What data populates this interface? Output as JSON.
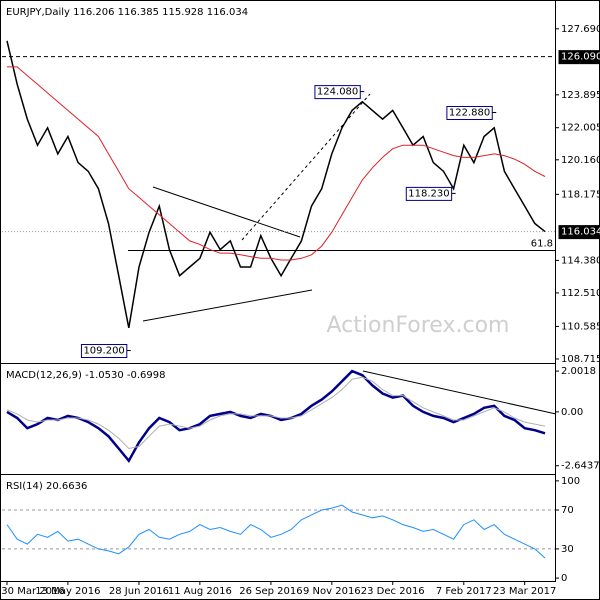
{
  "chart_data": [
    {
      "type": "line",
      "title": "EURJPY,Daily 116.206 116.385 115.928 116.034",
      "watermark": "ActionForex.com",
      "series": [
        {
          "color": "#000000",
          "values": [
            127.0,
            124.5,
            122.5,
            121.0,
            122.0,
            120.5,
            121.5,
            120.0,
            119.5,
            118.5,
            116.5,
            113.5,
            110.5,
            114.0,
            116.0,
            117.5,
            115.0,
            113.5,
            114.0,
            114.5,
            116.0,
            115.0,
            115.5,
            114.0,
            114.0,
            115.8,
            114.5,
            113.5,
            114.5,
            115.5,
            117.5,
            118.5,
            120.5,
            122.0,
            123.0,
            123.5,
            123.0,
            122.5,
            123.0,
            122.0,
            121.0,
            121.5,
            120.0,
            119.5,
            118.5,
            121.0,
            120.0,
            121.5,
            122.0,
            119.5,
            118.5,
            117.5,
            116.5,
            116.034
          ]
        },
        {
          "color": "#e0202a",
          "values": [
            125.5,
            125.5,
            125.0,
            124.5,
            124.0,
            123.5,
            123.0,
            122.5,
            122.0,
            121.5,
            120.5,
            119.5,
            118.5,
            118.0,
            117.5,
            117.0,
            116.5,
            116.0,
            115.5,
            115.3,
            115.0,
            114.8,
            114.8,
            114.7,
            114.6,
            114.5,
            114.5,
            114.4,
            114.4,
            114.5,
            114.7,
            115.2,
            116.0,
            117.0,
            118.0,
            119.0,
            119.7,
            120.3,
            120.8,
            121.0,
            121.0,
            121.0,
            120.8,
            120.6,
            120.4,
            120.3,
            120.3,
            120.4,
            120.5,
            120.4,
            120.2,
            119.9,
            119.5,
            119.2
          ]
        }
      ],
      "ylim": [
        108.54,
        129.23
      ],
      "yticks": [
        {
          "value": 127.69,
          "label": "127.690"
        },
        {
          "value": 123.895,
          "label": "123.895"
        },
        {
          "value": 122.005,
          "label": "122.005"
        },
        {
          "value": 120.16,
          "label": "120.160"
        },
        {
          "value": 118.175,
          "label": "118.175"
        },
        {
          "value": 114.38,
          "label": "114.380"
        },
        {
          "value": 112.51,
          "label": "112.510"
        },
        {
          "value": 110.585,
          "label": "110.585"
        },
        {
          "value": 108.715,
          "label": "108.715"
        }
      ],
      "hlines": [
        {
          "value": 126.09,
          "label": "126.090"
        },
        {
          "value": 116.034,
          "label": "116.034"
        }
      ],
      "fib": {
        "value": 114.95,
        "label": "61.8"
      },
      "annotations": [
        {
          "value": 124.08,
          "label": "124.080",
          "x": 35
        },
        {
          "value": 122.88,
          "label": "122.880",
          "x": 48
        },
        {
          "value": 118.23,
          "label": "118.230",
          "x": 44
        },
        {
          "value": 109.2,
          "label": "109.200",
          "x": 12
        }
      ]
    },
    {
      "type": "line",
      "title": "MACD(12,26,9) -1.0530 -0.6998",
      "series": [
        {
          "color": "#00008b",
          "values": [
            0.0,
            -0.3,
            -0.8,
            -0.6,
            -0.3,
            -0.4,
            -0.2,
            -0.3,
            -0.5,
            -0.8,
            -1.2,
            -1.8,
            -2.4,
            -1.5,
            -0.8,
            -0.3,
            -0.5,
            -0.9,
            -0.8,
            -0.6,
            -0.2,
            -0.1,
            0.0,
            -0.2,
            -0.3,
            -0.1,
            -0.2,
            -0.4,
            -0.3,
            -0.1,
            0.3,
            0.6,
            1.0,
            1.5,
            2.0,
            1.8,
            1.3,
            0.9,
            0.7,
            0.8,
            0.3,
            0.0,
            -0.2,
            -0.3,
            -0.5,
            -0.3,
            -0.1,
            0.2,
            0.3,
            -0.2,
            -0.4,
            -0.8,
            -0.9,
            -1.053
          ]
        },
        {
          "color": "#b0b0b0",
          "values": [
            0.1,
            -0.1,
            -0.4,
            -0.5,
            -0.4,
            -0.4,
            -0.3,
            -0.3,
            -0.4,
            -0.6,
            -0.9,
            -1.3,
            -1.8,
            -1.7,
            -1.2,
            -0.7,
            -0.6,
            -0.7,
            -0.8,
            -0.7,
            -0.4,
            -0.2,
            -0.1,
            -0.1,
            -0.2,
            -0.2,
            -0.2,
            -0.3,
            -0.3,
            -0.2,
            0.1,
            0.4,
            0.7,
            1.1,
            1.6,
            1.7,
            1.5,
            1.1,
            0.8,
            0.8,
            0.5,
            0.2,
            0.0,
            -0.2,
            -0.4,
            -0.4,
            -0.2,
            0.0,
            0.2,
            0.0,
            -0.3,
            -0.5,
            -0.6,
            -0.6998
          ]
        }
      ],
      "ylim": [
        -3.0,
        2.3
      ],
      "yticks": [
        2.0018,
        {
          "value": 0,
          "label": "0.00"
        },
        -2.6437
      ]
    },
    {
      "type": "line",
      "title": "RSI(14) 20.6636",
      "categories": [
        "30 Mar 2016",
        null,
        null,
        null,
        null,
        null,
        "13 May 2016",
        null,
        null,
        null,
        null,
        null,
        null,
        "28 Jun 2016",
        null,
        null,
        null,
        null,
        null,
        "11 Aug 2016",
        null,
        null,
        null,
        null,
        null,
        null,
        "26 Sep 2016",
        null,
        null,
        null,
        null,
        null,
        "9 Nov 2016",
        null,
        null,
        null,
        null,
        null,
        "23 Dec 2016",
        null,
        null,
        null,
        null,
        null,
        null,
        "7 Feb 2017",
        null,
        null,
        null,
        null,
        null,
        "23 Mar 2017",
        null,
        null
      ],
      "series": [
        {
          "color": "#1e90ff",
          "values": [
            55,
            40,
            35,
            45,
            42,
            48,
            38,
            40,
            35,
            30,
            28,
            25,
            32,
            45,
            50,
            42,
            40,
            45,
            48,
            55,
            50,
            52,
            48,
            45,
            55,
            50,
            42,
            45,
            50,
            60,
            65,
            70,
            72,
            75,
            68,
            65,
            62,
            64,
            60,
            55,
            52,
            48,
            50,
            45,
            40,
            55,
            60,
            50,
            55,
            45,
            40,
            35,
            30,
            20.6636
          ]
        }
      ],
      "ylim": [
        -3,
        105
      ],
      "yticks": [
        100,
        70,
        30,
        0
      ],
      "dashed_ticks": [
        70,
        30
      ]
    }
  ]
}
